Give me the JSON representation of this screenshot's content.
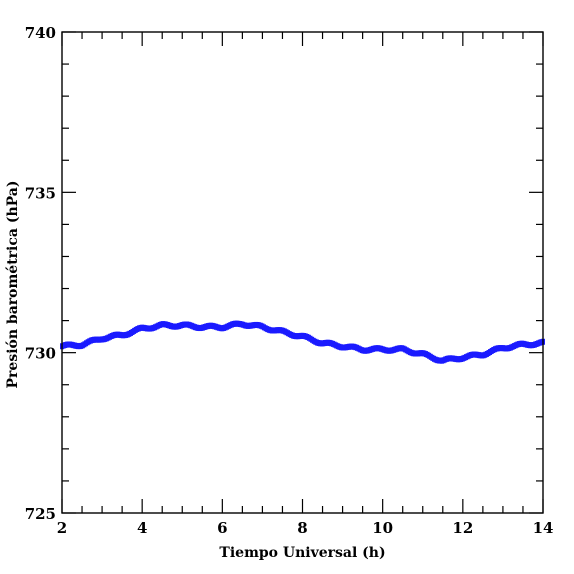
{
  "chart_data": {
    "type": "scatter",
    "xlabel": "Tiempo Universal (h)",
    "ylabel": "Presión barométrica (hPa)",
    "xlim": [
      2,
      14
    ],
    "ylim": [
      725,
      740
    ],
    "x_major_ticks": [
      2,
      4,
      6,
      8,
      10,
      12,
      14
    ],
    "y_major_ticks": [
      725,
      730,
      735,
      740
    ],
    "x_minor_step": 0.5,
    "y_minor_step": 1,
    "grid": false,
    "marker_color": "#1a1aff",
    "series": [
      {
        "x": [
          2.0,
          2.5,
          3.0,
          3.5,
          4.0,
          4.5,
          5.0,
          5.5,
          6.0,
          6.5,
          7.0,
          7.5,
          8.0,
          8.5,
          9.0,
          9.5,
          10.0,
          10.5,
          11.0,
          11.5,
          12.0,
          12.5,
          13.0,
          13.5,
          14.0
        ],
        "y": [
          730.2,
          730.25,
          730.45,
          730.55,
          730.75,
          730.85,
          730.85,
          730.8,
          730.8,
          730.9,
          730.8,
          730.65,
          730.5,
          730.3,
          730.2,
          730.1,
          730.1,
          730.1,
          729.95,
          729.75,
          729.85,
          729.95,
          730.15,
          730.25,
          730.3
        ]
      }
    ]
  }
}
